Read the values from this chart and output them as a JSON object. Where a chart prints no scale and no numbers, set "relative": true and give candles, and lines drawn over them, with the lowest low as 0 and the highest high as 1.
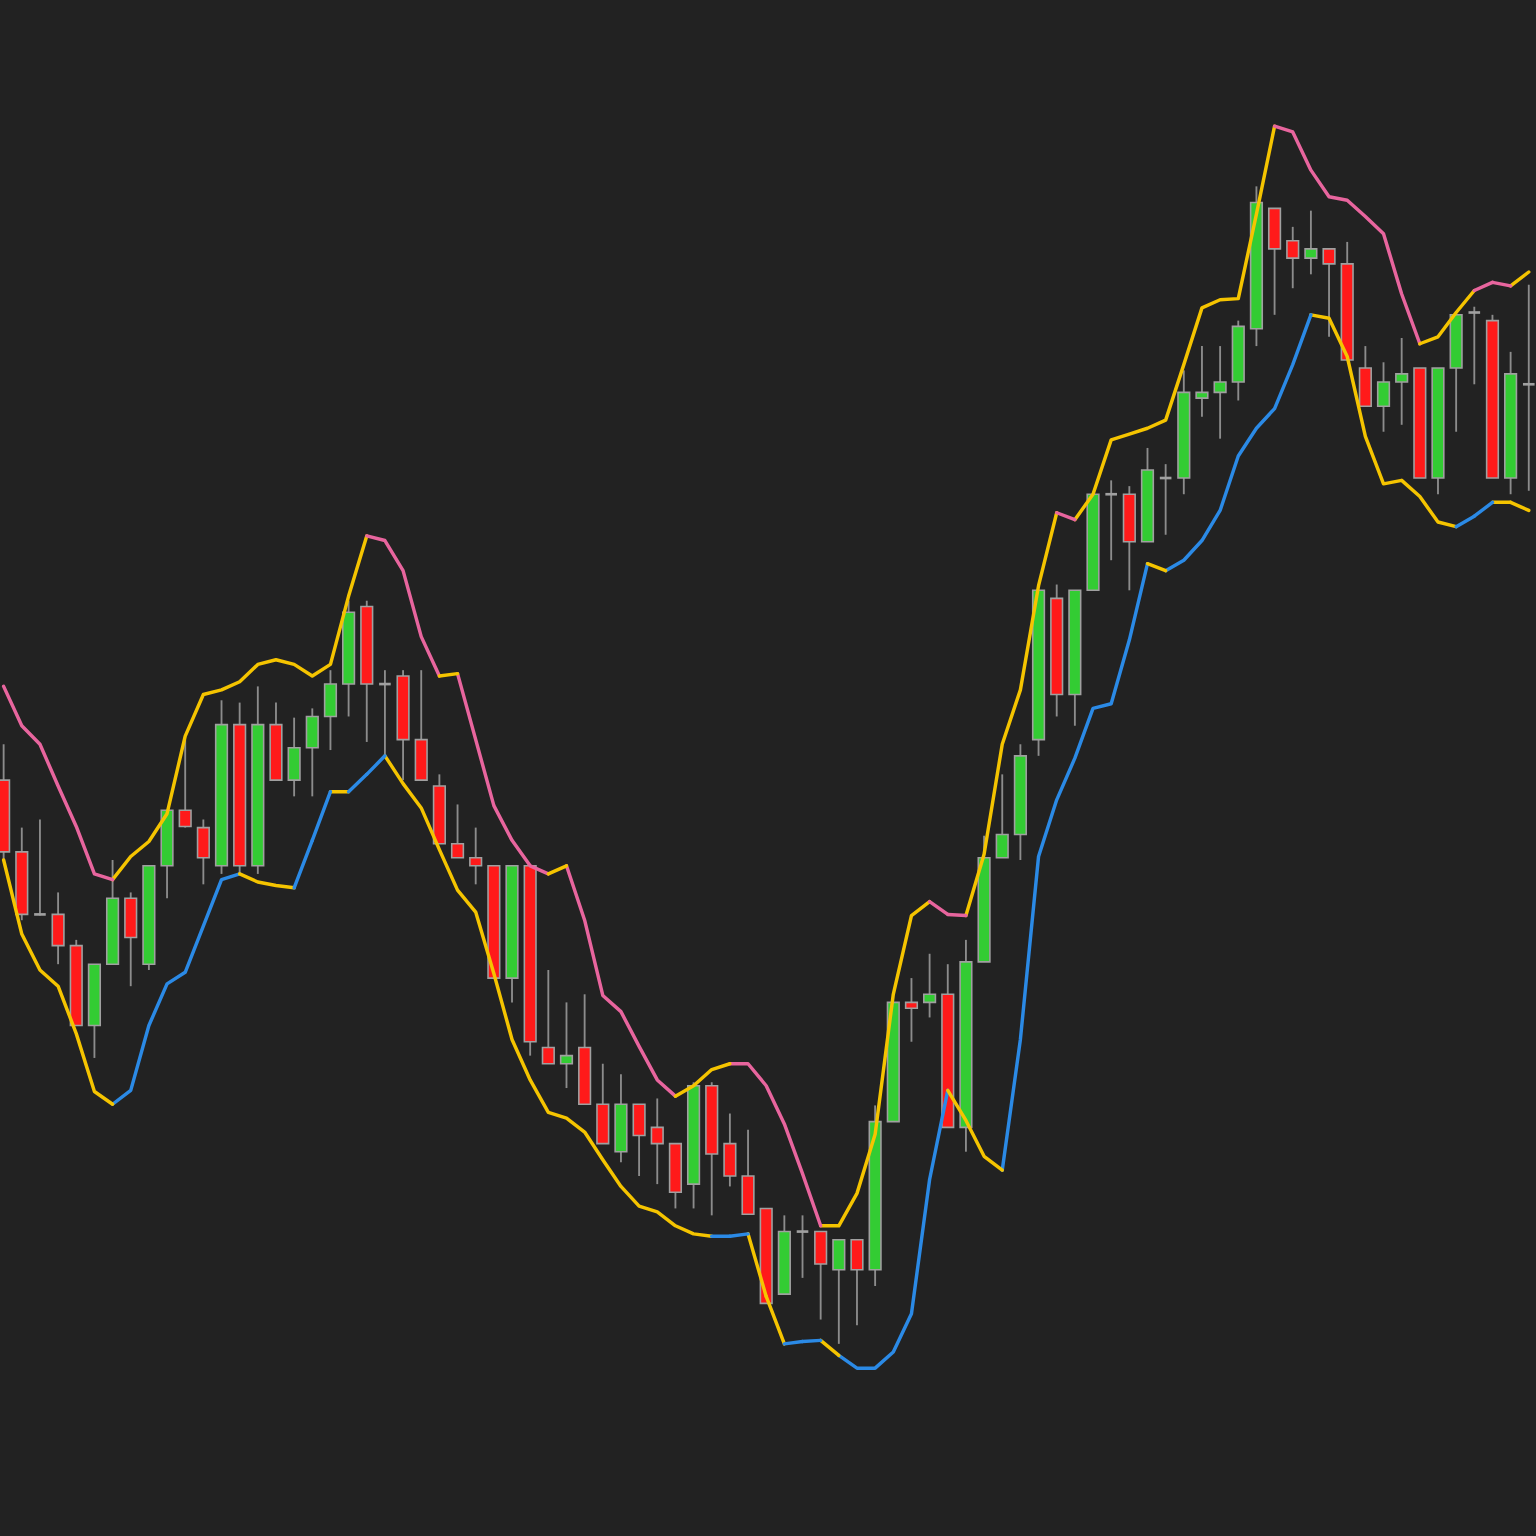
{
  "chart_data": {
    "type": "candlestick",
    "relative": true,
    "categories": [
      null,
      null,
      null,
      null,
      null,
      null,
      null,
      null,
      null,
      null,
      null,
      null,
      null,
      null,
      null,
      null,
      null,
      null,
      null,
      null,
      null,
      null,
      null,
      null,
      null,
      null,
      null,
      null,
      null,
      null,
      null,
      null,
      null,
      null,
      null,
      null,
      null,
      null,
      null,
      null,
      null,
      null,
      null,
      null,
      null,
      null,
      null,
      null,
      null,
      null,
      null,
      null,
      null,
      null,
      null,
      null,
      null,
      null,
      null,
      null,
      null,
      null,
      null,
      null,
      null,
      null,
      null,
      null,
      null,
      null,
      null,
      null,
      null,
      null,
      null,
      null,
      null,
      null,
      null,
      null,
      null,
      null,
      null,
      null,
      null
    ],
    "ohlc": [
      [
        0.487,
        0.518,
        0.418,
        0.425
      ],
      [
        0.425,
        0.446,
        0.366,
        0.371
      ],
      [
        0.371,
        0.453,
        0.37,
        0.371
      ],
      [
        0.371,
        0.39,
        0.328,
        0.344
      ],
      [
        0.344,
        0.349,
        0.275,
        0.275
      ],
      [
        0.275,
        0.328,
        0.247,
        0.328
      ],
      [
        0.328,
        0.418,
        0.328,
        0.385
      ],
      [
        0.385,
        0.39,
        0.309,
        0.351
      ],
      [
        0.328,
        0.413,
        0.323,
        0.413
      ],
      [
        0.413,
        0.461,
        0.385,
        0.461
      ],
      [
        0.461,
        0.522,
        0.446,
        0.447
      ],
      [
        0.446,
        0.453,
        0.397,
        0.42
      ],
      [
        0.413,
        0.556,
        0.406,
        0.535
      ],
      [
        0.535,
        0.554,
        0.406,
        0.413
      ],
      [
        0.413,
        0.568,
        0.406,
        0.535
      ],
      [
        0.535,
        0.554,
        0.487,
        0.487
      ],
      [
        0.487,
        0.541,
        0.473,
        0.515
      ],
      [
        0.515,
        0.549,
        0.473,
        0.542
      ],
      [
        0.542,
        0.582,
        0.513,
        0.57
      ],
      [
        0.57,
        0.642,
        0.542,
        0.632
      ],
      [
        0.637,
        0.642,
        0.52,
        0.57
      ],
      [
        0.57,
        0.582,
        0.508,
        0.57
      ],
      [
        0.577,
        0.582,
        0.487,
        0.522
      ],
      [
        0.522,
        0.582,
        0.487,
        0.487
      ],
      [
        0.482,
        0.492,
        0.432,
        0.432
      ],
      [
        0.432,
        0.466,
        0.42,
        0.42
      ],
      [
        0.42,
        0.446,
        0.397,
        0.413
      ],
      [
        0.413,
        0.413,
        0.316,
        0.316
      ],
      [
        0.316,
        0.413,
        0.295,
        0.413
      ],
      [
        0.413,
        0.413,
        0.249,
        0.261
      ],
      [
        0.256,
        0.323,
        0.242,
        0.242
      ],
      [
        0.242,
        0.295,
        0.221,
        0.249
      ],
      [
        0.256,
        0.302,
        0.207,
        0.207
      ],
      [
        0.207,
        0.242,
        0.173,
        0.173
      ],
      [
        0.166,
        0.233,
        0.157,
        0.207
      ],
      [
        0.207,
        0.207,
        0.145,
        0.18
      ],
      [
        0.187,
        0.212,
        0.138,
        0.173
      ],
      [
        0.173,
        0.173,
        0.117,
        0.131
      ],
      [
        0.138,
        0.226,
        0.117,
        0.223
      ],
      [
        0.223,
        0.226,
        0.111,
        0.164
      ],
      [
        0.173,
        0.199,
        0.136,
        0.145
      ],
      [
        0.145,
        0.185,
        0.112,
        0.112
      ],
      [
        0.117,
        0.117,
        0.035,
        0.035
      ],
      [
        0.043,
        0.111,
        0.043,
        0.097
      ],
      [
        0.097,
        0.111,
        0.057,
        0.097
      ],
      [
        0.097,
        0.097,
        0.021,
        0.069
      ],
      [
        0.064,
        0.09,
        0,
        0.09
      ],
      [
        0.09,
        0.09,
        0.016,
        0.064
      ],
      [
        0.064,
        0.206,
        0.05,
        0.192
      ],
      [
        0.192,
        0.295,
        0.192,
        0.295
      ],
      [
        0.295,
        0.316,
        0.261,
        0.29
      ],
      [
        0.295,
        0.337,
        0.282,
        0.302
      ],
      [
        0.302,
        0.328,
        0.187,
        0.187
      ],
      [
        0.187,
        0.349,
        0.166,
        0.33
      ],
      [
        0.33,
        0.439,
        0.33,
        0.42
      ],
      [
        0.42,
        0.492,
        0.42,
        0.44
      ],
      [
        0.44,
        0.518,
        0.418,
        0.508
      ],
      [
        0.522,
        0.651,
        0.508,
        0.651
      ],
      [
        0.644,
        0.656,
        0.542,
        0.561
      ],
      [
        0.561,
        0.651,
        0.534,
        0.651
      ],
      [
        0.651,
        0.734,
        0.651,
        0.734
      ],
      [
        0.734,
        0.746,
        0.677,
        0.734
      ],
      [
        0.734,
        0.741,
        0.651,
        0.693
      ],
      [
        0.693,
        0.774,
        0.693,
        0.755
      ],
      [
        0.748,
        0.76,
        0.699,
        0.748
      ],
      [
        0.748,
        0.841,
        0.734,
        0.822
      ],
      [
        0.817,
        0.862,
        0.801,
        0.822
      ],
      [
        0.822,
        0.862,
        0.782,
        0.831
      ],
      [
        0.831,
        0.884,
        0.815,
        0.879
      ],
      [
        0.877,
        1.0,
        0.862,
        0.986
      ],
      [
        0.981,
        0.981,
        0.889,
        0.946
      ],
      [
        0.953,
        0.965,
        0.912,
        0.938
      ],
      [
        0.938,
        0.979,
        0.924,
        0.946
      ],
      [
        0.946,
        0.946,
        0.87,
        0.933
      ],
      [
        0.933,
        0.952,
        0.85,
        0.85
      ],
      [
        0.843,
        0.862,
        0.81,
        0.81
      ],
      [
        0.81,
        0.848,
        0.788,
        0.831
      ],
      [
        0.831,
        0.869,
        0.794,
        0.838
      ],
      [
        0.843,
        0.843,
        0.748,
        0.748
      ],
      [
        0.748,
        0.843,
        0.734,
        0.843
      ],
      [
        0.843,
        0.889,
        0.788,
        0.889
      ],
      [
        0.891,
        0.896,
        0.829,
        0.891
      ],
      [
        0.884,
        0.889,
        0.748,
        0.748
      ],
      [
        0.748,
        0.857,
        0.734,
        0.838
      ],
      [
        0.829,
        0.915,
        0.737,
        0.829
      ]
    ],
    "series": [
      {
        "type": "line",
        "color": "#f5c400",
        "values": [
          null,
          null,
          null,
          null,
          null,
          null,
          0.401,
          0.421,
          0.434,
          0.458,
          0.525,
          0.561,
          0.565,
          0.572,
          0.587,
          0.591,
          0.587,
          0.577,
          0.587,
          0.646,
          0.698,
          null,
          null,
          null,
          null,
          null,
          null,
          null,
          null,
          null,
          0.406,
          0.413,
          null,
          null,
          null,
          null,
          null,
          null,
          null,
          null,
          null,
          null,
          null,
          null,
          null,
          0.102,
          0.102,
          0.13,
          0.181,
          0.302,
          0.37,
          0.382,
          null,
          null,
          null,
          null,
          null,
          null,
          null,
          0.712,
          0.734,
          0.781,
          0.786,
          0.791,
          0.798,
          0.846,
          0.895,
          0.902,
          0.903,
          0.976,
          1.052,
          null,
          null,
          null,
          null,
          null,
          null,
          null,
          null,
          null,
          null,
          null,
          null,
          0.914,
          0.926
        ]
      },
      {
        "type": "line",
        "color": "#f5c400",
        "values": [
          null,
          null,
          null,
          null,
          null,
          null,
          null,
          null,
          null,
          null,
          null,
          null,
          null,
          null,
          null,
          null,
          null,
          null,
          null,
          null,
          null,
          null,
          null,
          null,
          0.577,
          0.579,
          null,
          null,
          null,
          null,
          null,
          null,
          null,
          null,
          null,
          null,
          null,
          0.214,
          0.223,
          0.237,
          0.242,
          null,
          null,
          null,
          null,
          null,
          null,
          null,
          null,
          null,
          null,
          null,
          null,
          0.37,
          0.423,
          0.518,
          0.565,
          0.655,
          0.718,
          null,
          null,
          null,
          null,
          null,
          null,
          null,
          null,
          null,
          null,
          null,
          null,
          null,
          null,
          null,
          null,
          null,
          null,
          null,
          0.864,
          0.87,
          0.891,
          0.91,
          null,
          null,
          null
        ]
      },
      {
        "type": "line",
        "color": "#f5c400",
        "values": [
          0.418,
          0.354,
          0.323,
          0.309,
          0.268,
          0.218,
          0.207,
          null,
          null,
          null,
          null,
          null,
          null,
          0.406,
          0.399,
          0.396,
          0.394,
          null,
          0.477,
          0.477,
          null,
          0.508,
          0.484,
          0.463,
          0.427,
          0.392,
          0.373,
          0.32,
          0.263,
          0.228,
          0.2,
          0.195,
          0.183,
          0.159,
          0.136,
          0.119,
          0.114,
          0.102,
          0.095,
          0.093,
          null,
          0.095,
          0.041,
          0,
          null,
          0.003,
          -0.01,
          null,
          null,
          null,
          null,
          null,
          0.219,
          0.193,
          0.162,
          0.15,
          null,
          null,
          null,
          null,
          null,
          null,
          null,
          0.674,
          0.668,
          null,
          null,
          null,
          null,
          null,
          null,
          null,
          0.889,
          0.886,
          0.853,
          0.784,
          0.743,
          0.746,
          0.732,
          0.71,
          0.706,
          null,
          0.727,
          0.727,
          0.72
        ]
      },
      {
        "type": "line",
        "color": "#e8659e",
        "values": [
          0.568,
          0.534,
          0.518,
          0.482,
          0.447,
          0.406,
          0.401,
          null,
          null,
          null,
          null,
          null,
          null,
          null,
          null,
          null,
          null,
          null,
          null,
          null,
          null,
          null,
          null,
          null,
          null,
          0.579,
          0.522,
          0.465,
          0.435,
          0.413,
          0.406,
          null,
          null,
          null,
          null,
          null,
          null,
          null,
          null,
          null,
          0.242,
          0.242,
          0.223,
          0.19,
          0.147,
          0.102,
          null,
          null,
          null,
          null,
          null,
          null,
          null,
          null,
          null,
          null,
          null,
          null,
          0.718,
          0.712,
          null,
          null,
          null,
          null,
          null,
          null,
          null,
          null,
          null,
          null,
          null,
          null,
          null,
          null,
          null,
          null,
          null,
          null,
          null,
          null,
          null,
          0.91,
          0.917,
          0.914,
          null
        ]
      },
      {
        "type": "line",
        "color": "#e8659e",
        "values": [
          null,
          null,
          null,
          null,
          null,
          null,
          null,
          null,
          null,
          null,
          null,
          null,
          null,
          null,
          null,
          null,
          null,
          null,
          null,
          null,
          0.698,
          0.694,
          0.668,
          0.611,
          0.577,
          null,
          null,
          null,
          null,
          null,
          null,
          0.413,
          0.366,
          0.301,
          0.287,
          0.257,
          0.228,
          0.214,
          null,
          null,
          null,
          null,
          null,
          null,
          null,
          null,
          null,
          null,
          null,
          null,
          null,
          0.382,
          0.371,
          0.37,
          null,
          null,
          null,
          null,
          null,
          null,
          null,
          null,
          null,
          null,
          null,
          null,
          null,
          null,
          null,
          null,
          1.052,
          1.047,
          1.014,
          0.991,
          0.988,
          0.974,
          0.959,
          0.907,
          0.864,
          null,
          null,
          null,
          null,
          null,
          null
        ]
      },
      {
        "type": "line",
        "color": "#2b8ae6",
        "values": [
          null,
          null,
          null,
          null,
          null,
          null,
          0.207,
          0.219,
          0.275,
          0.311,
          0.321,
          0.361,
          0.401,
          0.406,
          null,
          null,
          null,
          null,
          null,
          0.477,
          0.492,
          0.508,
          null,
          null,
          null,
          null,
          null,
          null,
          null,
          null,
          null,
          null,
          null,
          null,
          null,
          null,
          null,
          null,
          null,
          null,
          null,
          null,
          null,
          0,
          0.002,
          0.003,
          null,
          null,
          null,
          null,
          null,
          null,
          null,
          null,
          null,
          0.15,
          0.263,
          0.421,
          0.47,
          0.506,
          0.549,
          0.553,
          0.608,
          0.674,
          null,
          null,
          null,
          null,
          null,
          null,
          null,
          null,
          null,
          null,
          null,
          null,
          null,
          null,
          null,
          null,
          0.706,
          0.715,
          0.727,
          null,
          null
        ]
      },
      {
        "type": "line",
        "color": "#2b8ae6",
        "values": [
          null,
          null,
          null,
          null,
          null,
          null,
          null,
          null,
          null,
          null,
          null,
          null,
          null,
          null,
          null,
          null,
          0.394,
          0.435,
          0.477,
          null,
          null,
          null,
          null,
          null,
          null,
          null,
          null,
          null,
          null,
          null,
          null,
          null,
          null,
          null,
          null,
          null,
          null,
          null,
          null,
          0.093,
          0.093,
          0.095,
          null,
          null,
          null,
          null,
          -0.01,
          -0.021,
          -0.021,
          -0.007,
          0.026,
          0.142,
          0.219,
          null,
          null,
          null,
          null,
          null,
          null,
          null,
          null,
          null,
          null,
          null,
          0.668,
          0.677,
          0.694,
          0.72,
          0.767,
          0.791,
          0.808,
          0.846,
          0.889,
          null,
          null,
          null,
          null,
          null,
          null,
          null,
          null,
          null,
          null,
          null,
          null
        ]
      }
    ]
  }
}
